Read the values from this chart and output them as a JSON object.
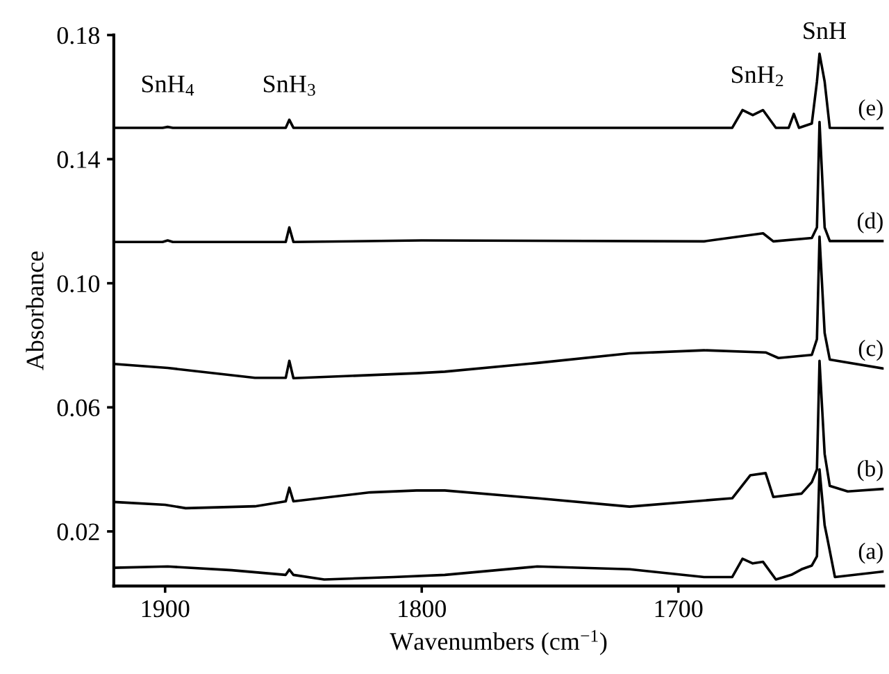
{
  "chart_data": {
    "type": "line",
    "xlabel": "Wavenumbers (cm$^{−1}$)",
    "ylabel": "Absorbance",
    "xlim": [
      1920,
      1620
    ],
    "ylim": [
      0.0024,
      0.18
    ],
    "xticks": [
      1900,
      1800,
      1700
    ],
    "yticks": [
      0.02,
      0.06,
      {
        "value": 0.1,
        "label": "0.10"
      },
      0.14,
      0.18
    ],
    "grid": false,
    "legend": false,
    "marker": "none",
    "line_style": "solid",
    "series": [
      {
        "name": "(a)",
        "color": "#000000",
        "x": [
          1920,
          1899,
          1874,
          1853,
          1851.6,
          1850,
          1838,
          1811,
          1791,
          1755,
          1719,
          1690,
          1679,
          1675,
          1671,
          1667,
          1662,
          1656,
          1652,
          1648,
          1646,
          1645,
          1643,
          1642,
          1639,
          1620
        ],
        "values": [
          0.0083,
          0.0087,
          0.0075,
          0.006,
          0.0077,
          0.006,
          0.0045,
          0.0053,
          0.006,
          0.0087,
          0.0078,
          0.0053,
          0.0053,
          0.0112,
          0.0097,
          0.0102,
          0.0045,
          0.006,
          0.0078,
          0.009,
          0.012,
          0.04,
          0.022,
          0.018,
          0.0053,
          0.0071
        ]
      },
      {
        "name": "(b)",
        "color": "#000000",
        "x": [
          1920,
          1900,
          1892,
          1865,
          1853,
          1851.6,
          1850,
          1820,
          1802,
          1791,
          1755,
          1719,
          1679,
          1672,
          1666,
          1663,
          1652,
          1648,
          1646,
          1645,
          1643,
          1641,
          1634,
          1620
        ],
        "values": [
          0.0295,
          0.0286,
          0.0275,
          0.0281,
          0.0297,
          0.0341,
          0.0297,
          0.0326,
          0.0332,
          0.0332,
          0.0307,
          0.028,
          0.0307,
          0.0381,
          0.0388,
          0.0311,
          0.0322,
          0.0359,
          0.04,
          0.075,
          0.045,
          0.0347,
          0.0329,
          0.0337
        ]
      },
      {
        "name": "(c)",
        "color": "#000000",
        "x": [
          1920,
          1899,
          1865,
          1853,
          1851.6,
          1850,
          1802,
          1791,
          1755,
          1719,
          1690,
          1666,
          1661,
          1648,
          1646,
          1645,
          1643,
          1641,
          1620
        ],
        "values": [
          0.074,
          0.0727,
          0.0695,
          0.0695,
          0.075,
          0.0694,
          0.071,
          0.0715,
          0.0743,
          0.0774,
          0.0784,
          0.0777,
          0.0759,
          0.0769,
          0.082,
          0.115,
          0.084,
          0.0754,
          0.0725
        ]
      },
      {
        "name": "(d)",
        "color": "#000000",
        "x": [
          1920,
          1901,
          1899,
          1897,
          1853,
          1851.6,
          1850,
          1800,
          1690,
          1667,
          1663,
          1648,
          1646,
          1645,
          1643,
          1641,
          1620
        ],
        "values": [
          0.1133,
          0.1133,
          0.1138,
          0.1133,
          0.1133,
          0.118,
          0.1133,
          0.1138,
          0.1135,
          0.1161,
          0.1135,
          0.1146,
          0.118,
          0.152,
          0.118,
          0.1136,
          0.1136
        ]
      },
      {
        "name": "(e)",
        "color": "#000000",
        "x": [
          1920,
          1901,
          1899,
          1897,
          1853,
          1851.6,
          1850,
          1700,
          1679,
          1675,
          1671,
          1667,
          1662,
          1657,
          1655,
          1653,
          1648,
          1646,
          1645,
          1643,
          1641,
          1620
        ],
        "values": [
          0.1501,
          0.1501,
          0.1504,
          0.1501,
          0.1501,
          0.1527,
          0.1501,
          0.1501,
          0.1501,
          0.1558,
          0.1542,
          0.1558,
          0.1501,
          0.1501,
          0.1546,
          0.1501,
          0.1515,
          0.165,
          0.174,
          0.165,
          0.1501,
          0.15
        ]
      }
    ],
    "annotations": [
      "SnH$_{4}$",
      "SnH$_{3}$",
      "SnH$_{2}$",
      "SnH"
    ]
  }
}
